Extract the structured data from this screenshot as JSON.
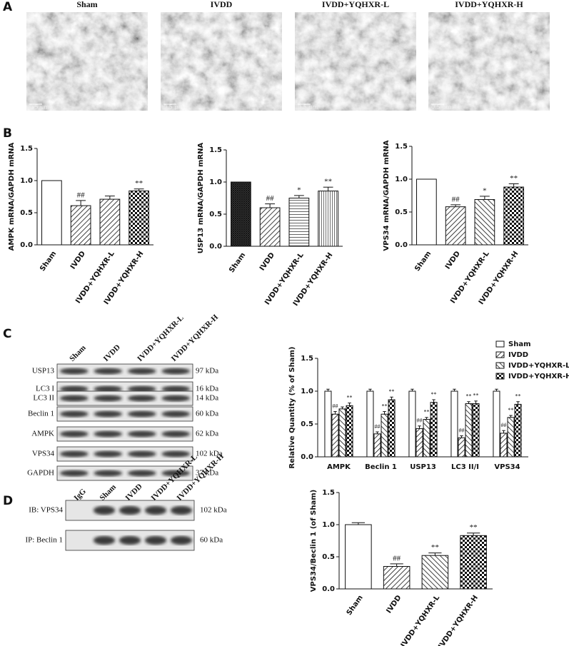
{
  "panels": [
    "A",
    "B",
    "C",
    "D"
  ],
  "micrographs": [
    {
      "title": "Sham",
      "scale": "0.5 μm"
    },
    {
      "title": "IVDD",
      "scale": "0.5 μm"
    },
    {
      "title": "IVDD+YQHXR-L",
      "scale": "0.5 μm"
    },
    {
      "title": "IVDD+YQHXR-H",
      "scale": "0.5 μm"
    }
  ],
  "blot_c": {
    "lanes": [
      "Sham",
      "IVDD",
      "IVDD+YQHXR-L",
      "IVDD+YQHXR-H"
    ],
    "rows": [
      {
        "label": "USP13",
        "kda": "97 kDa"
      },
      {
        "label": "LC3  I",
        "kda": "16 kDa"
      },
      {
        "label": "LC3 II",
        "kda": "14 kDa"
      },
      {
        "label": "Beclin 1",
        "kda": "60 kDa"
      },
      {
        "label": "AMPK",
        "kda": "62 kDa"
      },
      {
        "label": "VPS34",
        "kda": "102 kDa"
      },
      {
        "label": "GAPDH",
        "kda": "37 kDa"
      }
    ]
  },
  "blot_d": {
    "lanes": [
      "IgG",
      "Sham",
      "IVDD",
      "IVDD+YQHXR-L",
      "IVDD+YQHXR-H"
    ],
    "rows": [
      {
        "label": "IB: VPS34",
        "kda": "102 kDa"
      },
      {
        "label": "IP: Beclin 1",
        "kda": "60 kDa"
      }
    ]
  },
  "chart_data": [
    {
      "type": "bar",
      "ylabel": "AMPK mRNA/GAPDH mRNA",
      "categories": [
        "Sham",
        "IVDD",
        "IVDD+YQHXR-L",
        "IVDD+YQHXR-H"
      ],
      "values": [
        1.0,
        0.61,
        0.71,
        0.84
      ],
      "errors": [
        0,
        0.08,
        0.05,
        0.03
      ],
      "annotations": [
        null,
        "##",
        null,
        "**"
      ],
      "patterns": [
        "none",
        "hatch",
        "hatch",
        "checker"
      ],
      "ylim": [
        0,
        1.5
      ],
      "yticks": [
        {
          "value": 0,
          "label": "0.0"
        },
        0.5,
        {
          "value": 1,
          "label": "1.0"
        },
        1.5
      ]
    },
    {
      "type": "bar",
      "ylabel": "USP13 mRNA/GAPDH mRNA",
      "categories": [
        "Sham",
        "IVDD",
        "IVDD+YQHXR-L",
        "IVDD+YQHXR-H"
      ],
      "values": [
        1.0,
        0.6,
        0.75,
        0.86
      ],
      "errors": [
        0,
        0.06,
        0.04,
        0.06
      ],
      "annotations": [
        null,
        "##",
        "*",
        "**"
      ],
      "patterns": [
        "crosshatch",
        "hatch",
        "hlines",
        "vlines"
      ],
      "ylim": [
        0,
        1.5
      ],
      "yticks": [
        {
          "value": 0,
          "label": "0.0"
        },
        0.5,
        {
          "value": 1,
          "label": "1.0"
        },
        1.5
      ]
    },
    {
      "type": "bar",
      "ylabel": "VPS34 mRNA/GAPDH mRNA",
      "categories": [
        "Sham",
        "IVDD",
        "IVDD+YQHXR-L",
        "IVDD+YQHXR-H"
      ],
      "values": [
        1.0,
        0.58,
        0.69,
        0.88
      ],
      "errors": [
        0,
        0.03,
        0.05,
        0.05
      ],
      "annotations": [
        null,
        "##",
        "*",
        "**"
      ],
      "patterns": [
        "none",
        "hatch",
        "back-hatch",
        "checker"
      ],
      "ylim": [
        0,
        1.5
      ],
      "yticks": [
        {
          "value": 0,
          "label": "0.0"
        },
        0.5,
        {
          "value": 1,
          "label": "1.0"
        },
        1.5
      ]
    },
    {
      "type": "grouped-bar",
      "ylabel": "Relative Quantity (% of Sham)",
      "legend": "upper right",
      "categories": [
        "AMPK",
        "Beclin 1",
        "USP13",
        "LC3 II/I",
        "VPS34"
      ],
      "series": [
        {
          "name": "Sham",
          "pattern": "none",
          "values": [
            1.0,
            1.0,
            1.0,
            1.0,
            1.0
          ],
          "errors": [
            0.03,
            0.03,
            0.03,
            0.03,
            0.03
          ],
          "annotations": [
            null,
            null,
            null,
            null,
            null
          ]
        },
        {
          "name": "IVDD",
          "pattern": "hatch",
          "values": [
            0.65,
            0.35,
            0.43,
            0.29,
            0.36
          ],
          "errors": [
            0.04,
            0.03,
            0.04,
            0.03,
            0.04
          ],
          "annotations": [
            "##",
            "##",
            "##",
            "##",
            "##"
          ]
        },
        {
          "name": "IVDD+YQHXR-L",
          "pattern": "back-hatch",
          "values": [
            0.73,
            0.65,
            0.57,
            0.81,
            0.6
          ],
          "errors": [
            0.03,
            0.04,
            0.03,
            0.03,
            0.03
          ],
          "annotations": [
            null,
            "**",
            "**",
            "**",
            "**"
          ]
        },
        {
          "name": "IVDD+YQHXR-H",
          "pattern": "checker",
          "values": [
            0.78,
            0.87,
            0.83,
            0.81,
            0.8
          ],
          "errors": [
            0.04,
            0.04,
            0.04,
            0.04,
            0.04
          ],
          "annotations": [
            "**",
            "**",
            "**",
            "**",
            "**"
          ]
        }
      ],
      "ylim": [
        0,
        1.5
      ],
      "yticks": [
        {
          "value": 0,
          "label": "0.0"
        },
        0.5,
        {
          "value": 1,
          "label": "1.0"
        },
        1.5
      ]
    },
    {
      "type": "bar",
      "ylabel": "VPS34/Beclin 1 (of Sham)",
      "categories": [
        "Sham",
        "IVDD",
        "IVDD+YQHXR-L",
        "IVDD+YQHXR-H"
      ],
      "values": [
        1.0,
        0.35,
        0.52,
        0.83
      ],
      "errors": [
        0.03,
        0.04,
        0.04,
        0.04
      ],
      "annotations": [
        null,
        "##",
        "**",
        "**"
      ],
      "patterns": [
        "none",
        "hatch",
        "back-hatch",
        "checker"
      ],
      "ylim": [
        0,
        1.5
      ],
      "yticks": [
        {
          "value": 0,
          "label": "0.0"
        },
        0.5,
        {
          "value": 1,
          "label": "1.0"
        },
        1.5
      ]
    }
  ]
}
